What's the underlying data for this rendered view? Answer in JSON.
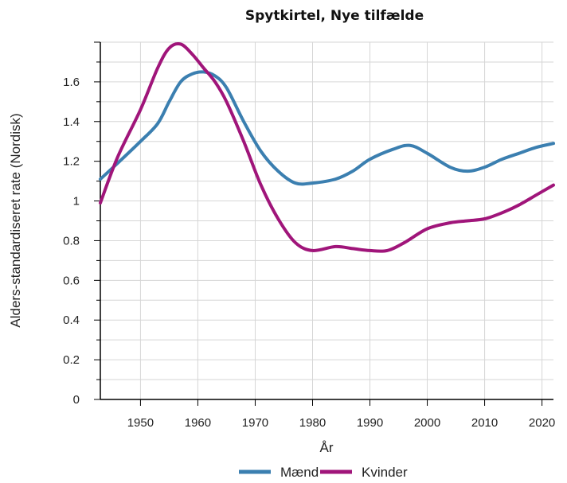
{
  "chart_data": {
    "type": "line",
    "title": "Spytkirtel, Nye tilfælde",
    "xlabel": "År",
    "ylabel": "Alders-standardiseret rate (Nordisk)",
    "xlim": [
      1943,
      2022
    ],
    "ylim": [
      0,
      1.8
    ],
    "x_ticks": [
      1950,
      1960,
      1970,
      1980,
      1990,
      2000,
      2010,
      2020
    ],
    "x_tick_labels": [
      "1950",
      "1960",
      "1970",
      "1980",
      "1990",
      "2000",
      "2010",
      "2020"
    ],
    "y_ticks": [
      0,
      0.2,
      0.4,
      0.6,
      0.8,
      1,
      1.2,
      1.4,
      1.6
    ],
    "y_tick_labels": [
      "0",
      "0.2",
      "0.4",
      "0.6",
      "0.8",
      "1",
      "1.2",
      "1.4",
      "1.6"
    ],
    "grid": true,
    "legend_position": "bottom",
    "series": [
      {
        "name": "Mænd",
        "color": "#3b7fb0",
        "x": [
          1943,
          1946,
          1950,
          1953,
          1955,
          1957,
          1959,
          1961,
          1963,
          1965,
          1968,
          1971,
          1974,
          1977,
          1980,
          1984,
          1987,
          1990,
          1994,
          1997,
          2000,
          2004,
          2007,
          2010,
          2013,
          2016,
          2019,
          2022
        ],
        "y": [
          1.11,
          1.19,
          1.3,
          1.39,
          1.5,
          1.6,
          1.64,
          1.65,
          1.63,
          1.57,
          1.4,
          1.25,
          1.15,
          1.09,
          1.09,
          1.11,
          1.15,
          1.21,
          1.26,
          1.28,
          1.24,
          1.17,
          1.15,
          1.17,
          1.21,
          1.24,
          1.27,
          1.29
        ]
      },
      {
        "name": "Kvinder",
        "color": "#a0157a",
        "x": [
          1943,
          1946,
          1950,
          1953,
          1955,
          1957,
          1959,
          1961,
          1963,
          1965,
          1968,
          1971,
          1974,
          1977,
          1980,
          1984,
          1987,
          1990,
          1993,
          1996,
          2000,
          2004,
          2007,
          2010,
          2013,
          2016,
          2019,
          2022
        ],
        "y": [
          0.99,
          1.22,
          1.46,
          1.67,
          1.77,
          1.79,
          1.74,
          1.67,
          1.6,
          1.5,
          1.3,
          1.08,
          0.91,
          0.79,
          0.75,
          0.77,
          0.76,
          0.75,
          0.75,
          0.79,
          0.86,
          0.89,
          0.9,
          0.91,
          0.94,
          0.98,
          1.03,
          1.08
        ]
      }
    ]
  }
}
